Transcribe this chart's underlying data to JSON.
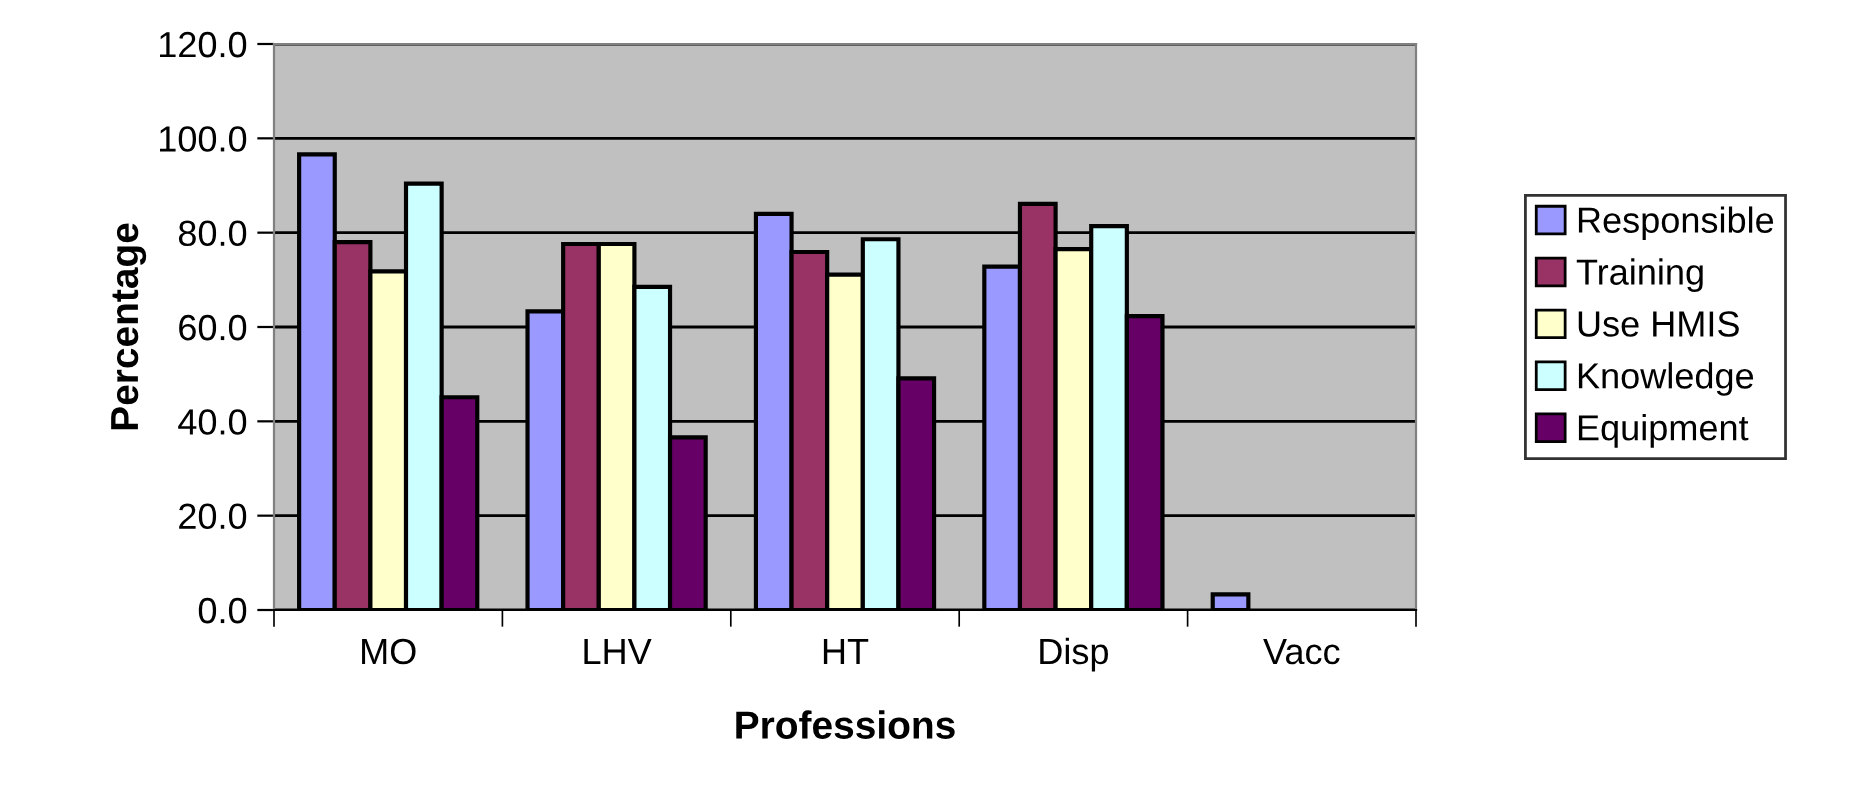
{
  "chart_data": {
    "type": "bar",
    "xlabel": "Professions",
    "ylabel": "Percentage",
    "categories": [
      "MO",
      "LHV",
      "HT",
      "Disp",
      "Vacc"
    ],
    "series": [
      {
        "name": "Responsible",
        "color": "#9999ff",
        "values": [
          96.6,
          63.3,
          84.0,
          72.8,
          3.3
        ]
      },
      {
        "name": "Training",
        "color": "#993366",
        "values": [
          78.0,
          77.6,
          75.9,
          86.1,
          0
        ]
      },
      {
        "name": "Use HMIS",
        "color": "#ffffcc",
        "values": [
          71.8,
          77.6,
          71.1,
          76.5,
          0
        ]
      },
      {
        "name": "Knowledge",
        "color": "#ccffff",
        "values": [
          90.4,
          68.5,
          78.6,
          81.4,
          0
        ]
      },
      {
        "name": "Equipment",
        "color": "#660066",
        "values": [
          45.1,
          36.6,
          49.1,
          62.3,
          0
        ]
      }
    ],
    "ylim": [
      0,
      120
    ],
    "yticks": [
      {
        "value": 0,
        "label": "0.0"
      },
      {
        "value": 20,
        "label": "20.0"
      },
      {
        "value": 40,
        "label": "40.0"
      },
      {
        "value": 60,
        "label": "60.0"
      },
      {
        "value": 80,
        "label": "80.0"
      },
      {
        "value": 100,
        "label": "100.0"
      },
      {
        "value": 120,
        "label": "120.0"
      }
    ],
    "grid": "y",
    "legend": "right"
  }
}
